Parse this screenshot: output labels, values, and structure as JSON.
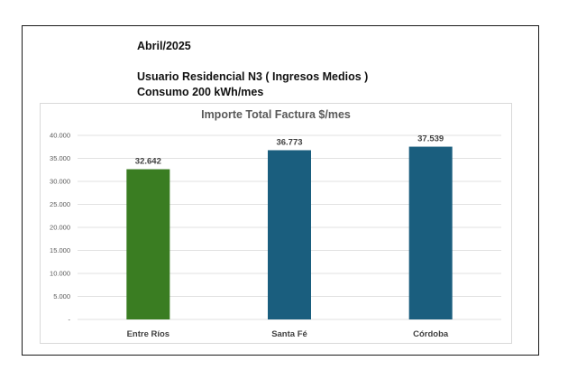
{
  "header": {
    "date": "Abril/2025",
    "user_type": "Usuario Residencial N3 ( Ingresos Medios )",
    "consumption": "Consumo  200 kWh/mes"
  },
  "chart_data": {
    "type": "bar",
    "title": "Importe Total  Factura $/mes",
    "xlabel": "",
    "ylabel": "",
    "categories": [
      "Entre Ríos",
      "Santa Fé",
      "Córdoba"
    ],
    "values": [
      32642,
      36773,
      37539
    ],
    "data_labels": [
      "32.642",
      "36.773",
      "37.539"
    ],
    "bar_colors": [
      "#3a7d22",
      "#1a5e7e",
      "#1a5e7e"
    ],
    "ylim": [
      0,
      40000
    ],
    "yticks": [
      0,
      5000,
      10000,
      15000,
      20000,
      25000,
      30000,
      35000,
      40000
    ],
    "ytick_labels": [
      "-",
      "5.000",
      "10.000",
      "15.000",
      "20.000",
      "25.000",
      "30.000",
      "35.000",
      "40.000"
    ],
    "grid": true,
    "legend": "none"
  }
}
